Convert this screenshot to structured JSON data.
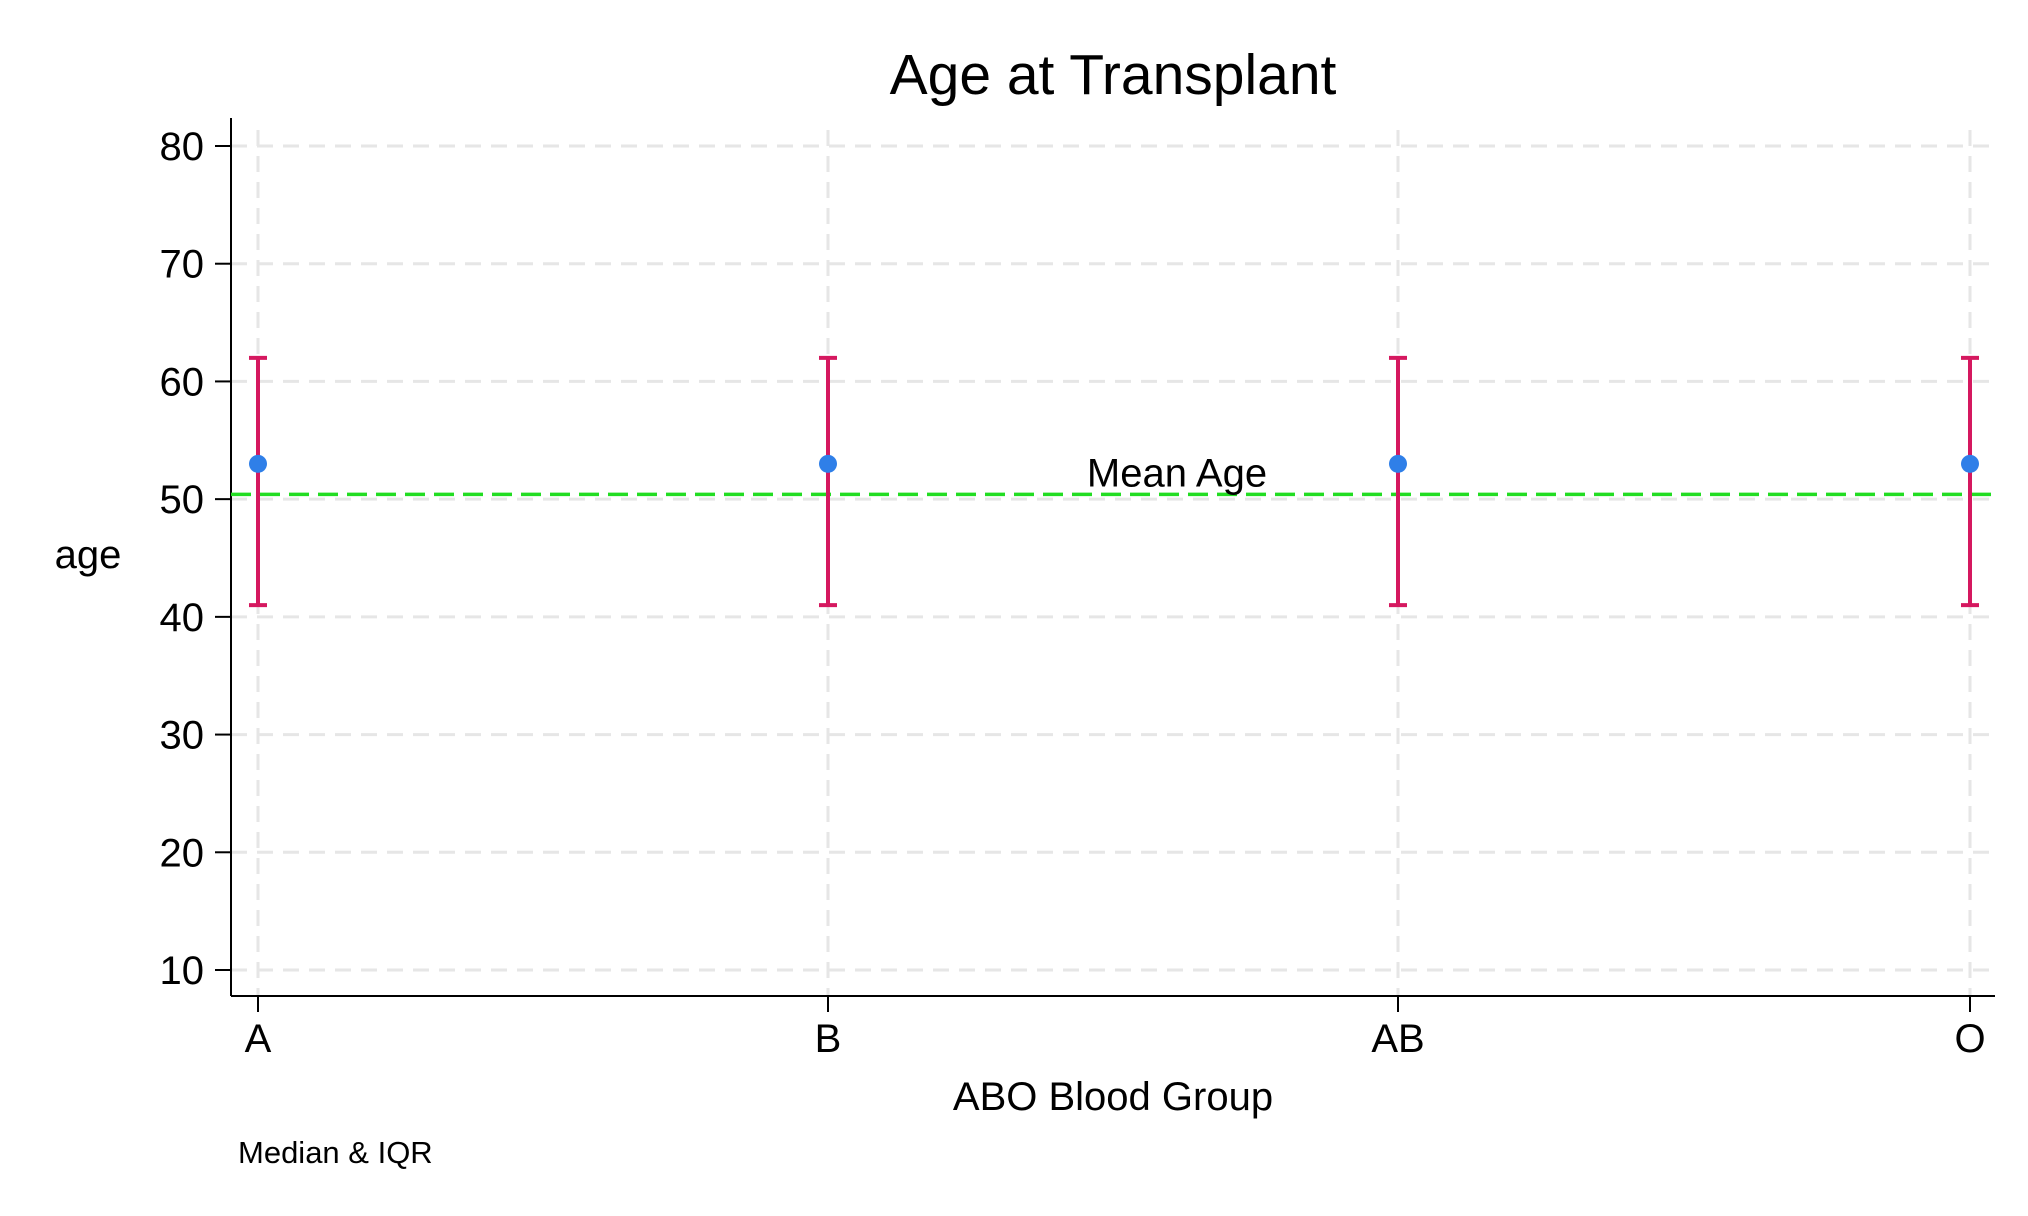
{
  "chart_data": {
    "type": "scatter",
    "title": "Age at Transplant",
    "xlabel": "ABO Blood Group",
    "ylabel": "age",
    "note": "Median & IQR",
    "categories": [
      "A",
      "B",
      "AB",
      "O"
    ],
    "ylim": [
      8,
      82
    ],
    "yticks": [
      10,
      20,
      30,
      40,
      50,
      60,
      70,
      80
    ],
    "grid": true,
    "series": [
      {
        "median": [
          53,
          53,
          53,
          53
        ],
        "q1": [
          41,
          41,
          41,
          41
        ],
        "q3": [
          62,
          62,
          62,
          62
        ]
      }
    ],
    "reference_line": {
      "value": 50.4,
      "label": "Mean Age"
    },
    "colors": {
      "point": "#2f7fe8",
      "errorbar": "#d5185f",
      "reference": "#22dd22",
      "grid": "#e6e6e6",
      "axis": "#000000"
    }
  }
}
